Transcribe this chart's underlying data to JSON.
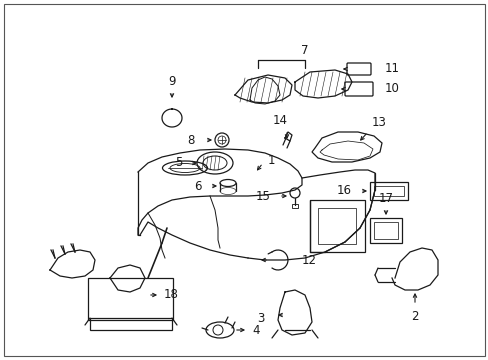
{
  "bg_color": "#ffffff",
  "line_color": "#1a1a1a",
  "figsize": [
    4.89,
    3.6
  ],
  "dpi": 100,
  "border": true
}
